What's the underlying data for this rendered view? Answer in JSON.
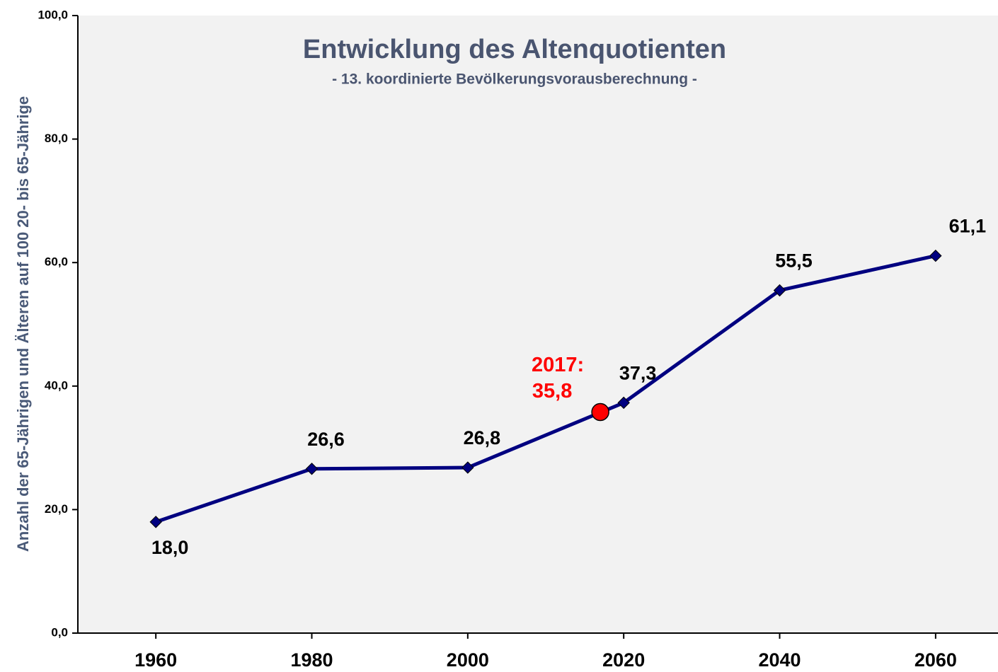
{
  "chart_data": {
    "type": "line",
    "title": "Entwicklung  des Altenquotienten",
    "subtitle": "- 13. koordinierte Bevölkerungsvorausberechnung -",
    "y_label": "Anzahl der 65-Jährigen und Älteren auf 100 20- bis 65-Jährige",
    "x": [
      1960,
      1980,
      2000,
      2020,
      2040,
      2060
    ],
    "series": [
      {
        "color": "#000080",
        "values": [
          18.0,
          26.6,
          26.8,
          37.3,
          55.5,
          61.1
        ],
        "value_labels": [
          "18,0",
          "26,6",
          "26,8",
          "37,3",
          "55,5",
          "61,1"
        ]
      }
    ],
    "highlight": {
      "x": 2017,
      "label": "2017:",
      "value": 35.8,
      "value_label": "35,8",
      "color": "#ff0000"
    },
    "xlim": [
      1950,
      2068
    ],
    "xticks": [
      1960,
      1980,
      2000,
      2020,
      2040,
      2060
    ],
    "ylim": [
      0,
      100
    ],
    "yticks": [
      {
        "value": 0,
        "label": "0,0"
      },
      {
        "value": 20,
        "label": "20,0"
      },
      {
        "value": 40,
        "label": "40,0"
      },
      {
        "value": 60,
        "label": "60,0"
      },
      {
        "value": 80,
        "label": "80,0"
      },
      {
        "value": 100,
        "label": "100,0"
      }
    ]
  }
}
